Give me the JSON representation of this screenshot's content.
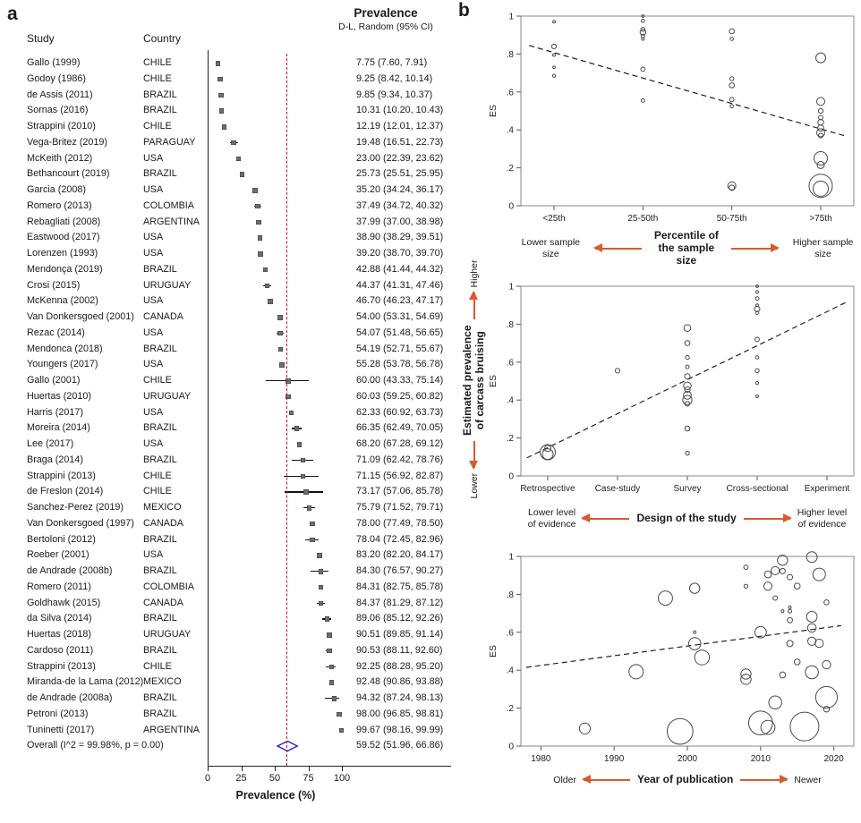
{
  "panel_a": {
    "label": "a",
    "col_study": "Study",
    "col_country": "Country",
    "header_prevalence": "Prevalence",
    "header_model": "D-L, Random (95% CI)",
    "axis_label": "Prevalence (%)"
  },
  "panel_b": {
    "label": "b",
    "es_label": "ES",
    "captions": {
      "percentile": {
        "left": "Lower sample size",
        "center": "Percentile of\nthe sample size",
        "right": "Higher sample size"
      },
      "design": {
        "left": "Lower level\nof evidence",
        "center": "Design of the study",
        "right": "Higher level\nof evidence"
      },
      "year": {
        "left": "Older",
        "center": "Year of publication",
        "right": "Newer"
      }
    },
    "y_axis_block": {
      "top": "Higher",
      "bottom": "Lower",
      "label": "Estimated prevalence\nof carcass bruising"
    }
  },
  "chart_data": [
    {
      "type": "forest",
      "panel": "a",
      "title": "Prevalence",
      "model": "D-L, Random (95% CI)",
      "xlabel": "Prevalence (%)",
      "xticks": [
        0,
        25,
        50,
        75,
        100
      ],
      "ref_line": 59.52,
      "columns": [
        "study",
        "country",
        "est",
        "ci_low",
        "ci_high"
      ],
      "studies": [
        [
          "Gallo (1999)",
          "CHILE",
          7.75,
          7.6,
          7.91
        ],
        [
          "Godoy (1986)",
          "CHILE",
          9.25,
          8.42,
          10.14
        ],
        [
          "de Assis (2011)",
          "BRAZIL",
          9.85,
          9.34,
          10.37
        ],
        [
          "Sornas (2016)",
          "BRAZIL",
          10.31,
          10.2,
          10.43
        ],
        [
          "Strappini (2010)",
          "CHILE",
          12.19,
          12.01,
          12.37
        ],
        [
          "Vega-Britez (2019)",
          "PARAGUAY",
          19.48,
          16.51,
          22.73
        ],
        [
          "McKeith (2012)",
          "USA",
          23.0,
          22.39,
          23.62
        ],
        [
          "Bethancourt (2019)",
          "BRAZIL",
          25.73,
          25.51,
          25.95
        ],
        [
          "Garcia (2008)",
          "USA",
          35.2,
          34.24,
          36.17
        ],
        [
          "Romero (2013)",
          "COLOMBIA",
          37.49,
          34.72,
          40.32
        ],
        [
          "Rebagliati (2008)",
          "ARGENTINA",
          37.99,
          37.0,
          38.98
        ],
        [
          "Eastwood (2017)",
          "USA",
          38.9,
          38.29,
          39.51
        ],
        [
          "Lorenzen (1993)",
          "USA",
          39.2,
          38.7,
          39.7
        ],
        [
          "Mendonça (2019)",
          "BRAZIL",
          42.88,
          41.44,
          44.32
        ],
        [
          "Crosi (2015)",
          "URUGUAY",
          44.37,
          41.31,
          47.46
        ],
        [
          "McKenna (2002)",
          "USA",
          46.7,
          46.23,
          47.17
        ],
        [
          "Van Donkersgoed (2001)",
          "CANADA",
          54.0,
          53.31,
          54.69
        ],
        [
          "Rezac (2014)",
          "USA",
          54.07,
          51.48,
          56.65
        ],
        [
          "Mendonca (2018)",
          "BRAZIL",
          54.19,
          52.71,
          55.67
        ],
        [
          "Youngers (2017)",
          "USA",
          55.28,
          53.78,
          56.78
        ],
        [
          "Gallo (2001)",
          "CHILE",
          60.0,
          43.33,
          75.14
        ],
        [
          "Huertas (2010)",
          "URUGUAY",
          60.03,
          59.25,
          60.82
        ],
        [
          "Harris (2017)",
          "USA",
          62.33,
          60.92,
          63.73
        ],
        [
          "Moreira (2014)",
          "BRAZIL",
          66.35,
          62.49,
          70.05
        ],
        [
          "Lee (2017)",
          "USA",
          68.2,
          67.28,
          69.12
        ],
        [
          "Braga (2014)",
          "BRAZIL",
          71.09,
          62.42,
          78.76
        ],
        [
          "Strappini (2013)",
          "CHILE",
          71.15,
          56.92,
          82.87
        ],
        [
          "de Freslon (2014)",
          "CHILE",
          73.17,
          57.06,
          85.78
        ],
        [
          "Sanchez-Perez (2019)",
          "MEXICO",
          75.79,
          71.52,
          79.71
        ],
        [
          "Van Donkersgoed (1997)",
          "CANADA",
          78.0,
          77.49,
          78.5
        ],
        [
          "Bertoloni (2012)",
          "BRAZIL",
          78.04,
          72.45,
          82.96
        ],
        [
          "Roeber (2001)",
          "USA",
          83.2,
          82.2,
          84.17
        ],
        [
          "de Andrade (2008b)",
          "BRAZIL",
          84.3,
          76.57,
          90.27
        ],
        [
          "Romero (2011)",
          "COLOMBIA",
          84.31,
          82.75,
          85.78
        ],
        [
          "Goldhawk (2015)",
          "CANADA",
          84.37,
          81.29,
          87.12
        ],
        [
          "da Silva (2014)",
          "BRAZIL",
          89.06,
          85.12,
          92.26
        ],
        [
          "Huertas (2018)",
          "URUGUAY",
          90.51,
          89.85,
          91.14
        ],
        [
          "Cardoso (2011)",
          "BRAZIL",
          90.53,
          88.11,
          92.6
        ],
        [
          "Strappini (2013)",
          "CHILE",
          92.25,
          88.28,
          95.2
        ],
        [
          "Miranda-de la Lama (2012)",
          "MEXICO",
          92.48,
          90.86,
          93.88
        ],
        [
          "de Andrade (2008a)",
          "BRAZIL",
          94.32,
          87.24,
          98.13
        ],
        [
          "Petroni (2013)",
          "BRAZIL",
          98.0,
          96.85,
          98.81
        ],
        [
          "Tuninetti (2017)",
          "ARGENTINA",
          99.67,
          98.16,
          99.99
        ]
      ],
      "overall": {
        "label": "Overall  (I^2 = 99.98%, p = 0.00)",
        "est": 59.52,
        "lo": 51.96,
        "hi": 66.86
      }
    },
    {
      "type": "scatter",
      "id": "percentile",
      "ylabel": "ES",
      "ylim": [
        0,
        1
      ],
      "ytick_labels": [
        "0",
        ".2",
        ".4",
        ".6",
        ".8",
        "1"
      ],
      "categories": [
        "<25th",
        "25-50th",
        "50-75th",
        ">75th"
      ],
      "cat_margin": 37,
      "points": [
        [
          0,
          0.97,
          1.4
        ],
        [
          0,
          0.84,
          2.6
        ],
        [
          0,
          0.795,
          1.5
        ],
        [
          0,
          0.73,
          1.4
        ],
        [
          0,
          0.685,
          1.6
        ],
        [
          1,
          1.0,
          1.4
        ],
        [
          1,
          0.975,
          1.8
        ],
        [
          1,
          0.93,
          2.2
        ],
        [
          1,
          0.915,
          3.2
        ],
        [
          1,
          0.895,
          2.0
        ],
        [
          1,
          0.88,
          1.5
        ],
        [
          1,
          0.72,
          2.4
        ],
        [
          1,
          0.555,
          2.0
        ],
        [
          2,
          0.92,
          2.8
        ],
        [
          2,
          0.88,
          1.8
        ],
        [
          2,
          0.67,
          2.2
        ],
        [
          2,
          0.635,
          2.8
        ],
        [
          2,
          0.56,
          2.4
        ],
        [
          2,
          0.525,
          1.8
        ],
        [
          2,
          0.105,
          4.5
        ],
        [
          2,
          0.095,
          3.0
        ],
        [
          3,
          0.78,
          5.5
        ],
        [
          3,
          0.55,
          4.5
        ],
        [
          3,
          0.5,
          2.6
        ],
        [
          3,
          0.465,
          2.4
        ],
        [
          3,
          0.44,
          3.2
        ],
        [
          3,
          0.41,
          3.4
        ],
        [
          3,
          0.385,
          4.5
        ],
        [
          3,
          0.37,
          2.6
        ],
        [
          3,
          0.25,
          7.5
        ],
        [
          3,
          0.215,
          4.0
        ],
        [
          3,
          0.105,
          13
        ],
        [
          3,
          0.09,
          8.5
        ]
      ],
      "trend": [
        -0.28,
        0.845,
        3.3,
        0.365
      ]
    },
    {
      "type": "scatter",
      "id": "design",
      "ylabel": "ES",
      "ylim": [
        0,
        1
      ],
      "ytick_labels": [
        "0",
        ".2",
        ".4",
        ".6",
        ".8",
        "1"
      ],
      "categories": [
        "Retrospective",
        "Case-study",
        "Survey",
        "Cross-sectional",
        "Experiment"
      ],
      "cat_margin": 30,
      "points": [
        [
          0,
          0.125,
          8.5
        ],
        [
          0,
          0.115,
          6.0
        ],
        [
          0,
          0.145,
          3.5
        ],
        [
          1,
          0.555,
          2.6
        ],
        [
          2,
          0.78,
          3.8
        ],
        [
          2,
          0.7,
          2.8
        ],
        [
          2,
          0.625,
          2.2
        ],
        [
          2,
          0.575,
          2.0
        ],
        [
          2,
          0.525,
          3.0
        ],
        [
          2,
          0.475,
          4.2
        ],
        [
          2,
          0.455,
          3.0
        ],
        [
          2,
          0.425,
          4.4
        ],
        [
          2,
          0.4,
          5.2
        ],
        [
          2,
          0.38,
          2.6
        ],
        [
          2,
          0.25,
          2.8
        ],
        [
          2,
          0.12,
          2.2
        ],
        [
          3,
          1.0,
          1.4
        ],
        [
          3,
          0.97,
          1.6
        ],
        [
          3,
          0.935,
          2.0
        ],
        [
          3,
          0.9,
          1.5
        ],
        [
          3,
          0.88,
          3.0
        ],
        [
          3,
          0.86,
          1.8
        ],
        [
          3,
          0.72,
          2.4
        ],
        [
          3,
          0.625,
          1.8
        ],
        [
          3,
          0.555,
          2.2
        ],
        [
          3,
          0.49,
          1.6
        ],
        [
          3,
          0.42,
          1.5
        ]
      ],
      "trend": [
        -0.3,
        0.095,
        4.3,
        0.92
      ]
    },
    {
      "type": "scatter",
      "id": "year",
      "ylabel": "ES",
      "ylim": [
        0,
        1
      ],
      "ytick_labels": [
        "0",
        ".2",
        ".4",
        ".6",
        ".8",
        "1"
      ],
      "xlim": [
        1978,
        2022
      ],
      "xticks": [
        1980,
        1990,
        2000,
        2010,
        2020
      ],
      "points_source": "forest_studies (x = publication year, y = prevalence/100, bubble size = precision)",
      "trend": [
        1978,
        0.415,
        2021,
        0.635
      ]
    }
  ]
}
